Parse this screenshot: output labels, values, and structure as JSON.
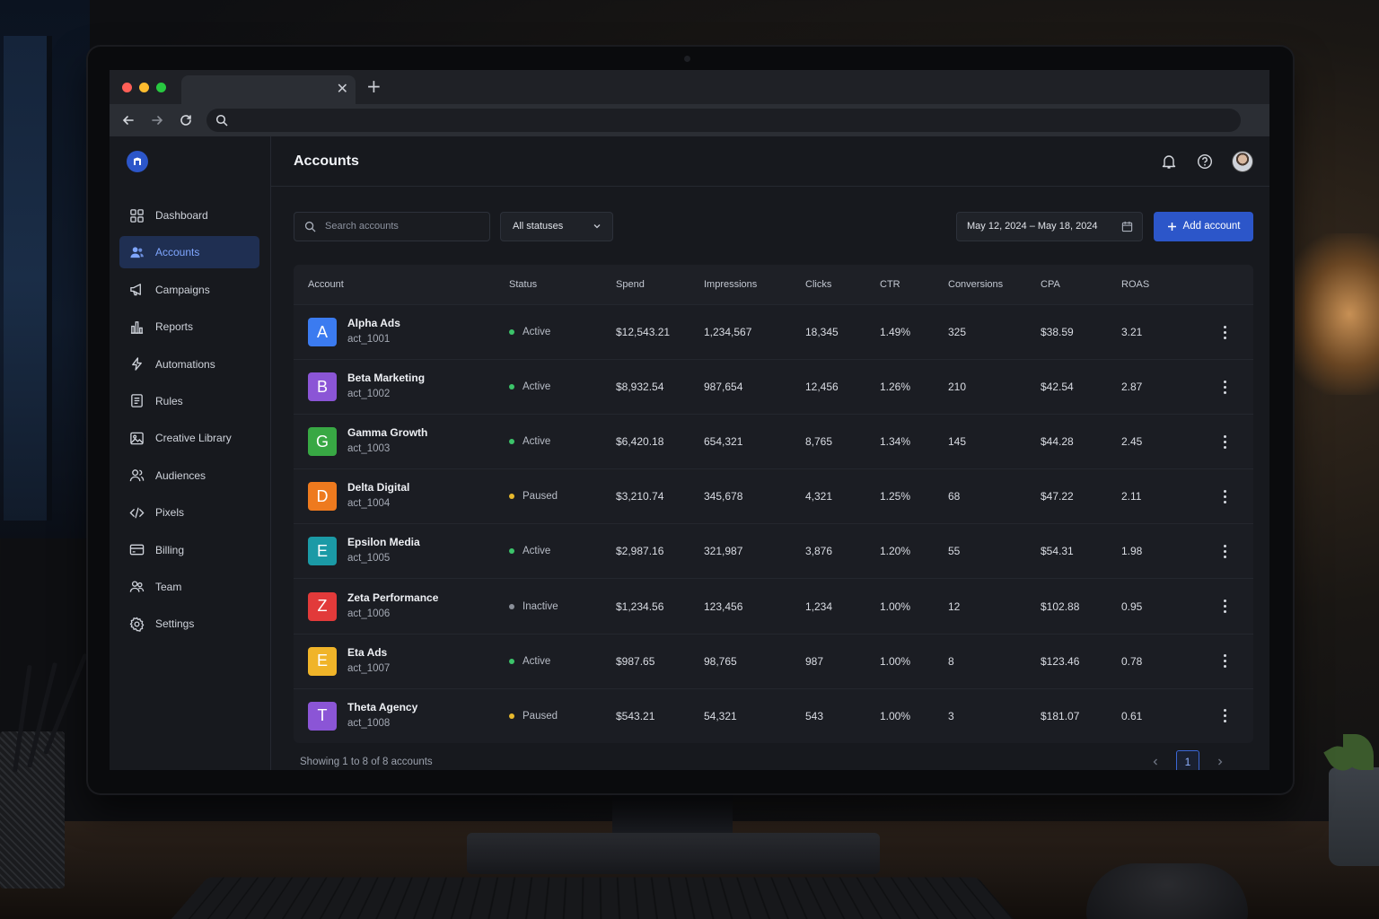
{
  "app": {
    "title": "Accounts",
    "brand_color": "#2c56c9"
  },
  "sidebar": {
    "items": [
      {
        "label": "Dashboard",
        "icon": "dashboard-grid-icon"
      },
      {
        "label": "Accounts",
        "icon": "users-icon",
        "active": true
      },
      {
        "label": "Campaigns",
        "icon": "megaphone-icon"
      },
      {
        "label": "Reports",
        "icon": "bar-chart-icon"
      },
      {
        "label": "Automations",
        "icon": "lightning-icon"
      },
      {
        "label": "Rules",
        "icon": "document-list-icon"
      },
      {
        "label": "Creative Library",
        "icon": "image-icon"
      },
      {
        "label": "Audiences",
        "icon": "people-icon"
      },
      {
        "label": "Pixels",
        "icon": "code-icon"
      },
      {
        "label": "Billing",
        "icon": "credit-card-icon"
      },
      {
        "label": "Team",
        "icon": "team-icon"
      },
      {
        "label": "Settings",
        "icon": "gear-icon"
      }
    ]
  },
  "filters": {
    "search_placeholder": "Search accounts",
    "status_value": "All statuses",
    "date_range": "May 12, 2024 – May 18, 2024",
    "add_label": "Add account"
  },
  "table": {
    "columns": [
      "Account",
      "Status",
      "Spend",
      "Impressions",
      "Clicks",
      "CTR",
      "Conversions",
      "CPA",
      "ROAS"
    ],
    "rows": [
      {
        "letter": "A",
        "color": "#3b7bf0",
        "name": "Alpha Ads",
        "id": "act_1001",
        "status": "Active",
        "status_color": "#3cc46a",
        "spend": "$12,543.21",
        "impressions": "1,234,567",
        "clicks": "18,345",
        "ctr": "1.49%",
        "conversions": "325",
        "cpa": "$38.59",
        "roas": "3.21"
      },
      {
        "letter": "B",
        "color": "#8b55d6",
        "name": "Beta Marketing",
        "id": "act_1002",
        "status": "Active",
        "status_color": "#3cc46a",
        "spend": "$8,932.54",
        "impressions": "987,654",
        "clicks": "12,456",
        "ctr": "1.26%",
        "conversions": "210",
        "cpa": "$42.54",
        "roas": "2.87"
      },
      {
        "letter": "G",
        "color": "#38a844",
        "name": "Gamma Growth",
        "id": "act_1003",
        "status": "Active",
        "status_color": "#3cc46a",
        "spend": "$6,420.18",
        "impressions": "654,321",
        "clicks": "8,765",
        "ctr": "1.34%",
        "conversions": "145",
        "cpa": "$44.28",
        "roas": "2.45"
      },
      {
        "letter": "D",
        "color": "#ee7a1e",
        "name": "Delta Digital",
        "id": "act_1004",
        "status": "Paused",
        "status_color": "#e8b92d",
        "spend": "$3,210.74",
        "impressions": "345,678",
        "clicks": "4,321",
        "ctr": "1.25%",
        "conversions": "68",
        "cpa": "$47.22",
        "roas": "2.11"
      },
      {
        "letter": "E",
        "color": "#1b9aa6",
        "name": "Epsilon Media",
        "id": "act_1005",
        "status": "Active",
        "status_color": "#3cc46a",
        "spend": "$2,987.16",
        "impressions": "321,987",
        "clicks": "3,876",
        "ctr": "1.20%",
        "conversions": "55",
        "cpa": "$54.31",
        "roas": "1.98"
      },
      {
        "letter": "Z",
        "color": "#e23a3a",
        "name": "Zeta Performance",
        "id": "act_1006",
        "status": "Inactive",
        "status_color": "#8a8f99",
        "spend": "$1,234.56",
        "impressions": "123,456",
        "clicks": "1,234",
        "ctr": "1.00%",
        "conversions": "12",
        "cpa": "$102.88",
        "roas": "0.95"
      },
      {
        "letter": "E",
        "color": "#f0b429",
        "name": "Eta Ads",
        "id": "act_1007",
        "status": "Active",
        "status_color": "#3cc46a",
        "spend": "$987.65",
        "impressions": "98,765",
        "clicks": "987",
        "ctr": "1.00%",
        "conversions": "8",
        "cpa": "$123.46",
        "roas": "0.78"
      },
      {
        "letter": "T",
        "color": "#8b55d6",
        "name": "Theta Agency",
        "id": "act_1008",
        "status": "Paused",
        "status_color": "#e8b92d",
        "spend": "$543.21",
        "impressions": "54,321",
        "clicks": "543",
        "ctr": "1.00%",
        "conversions": "3",
        "cpa": "$181.07",
        "roas": "0.61"
      }
    ]
  },
  "footer": {
    "summary": "Showing 1 to 8 of 8 accounts",
    "current_page": "1",
    "prev_icon": "chevron-left-icon",
    "next_icon": "chevron-right-icon"
  }
}
